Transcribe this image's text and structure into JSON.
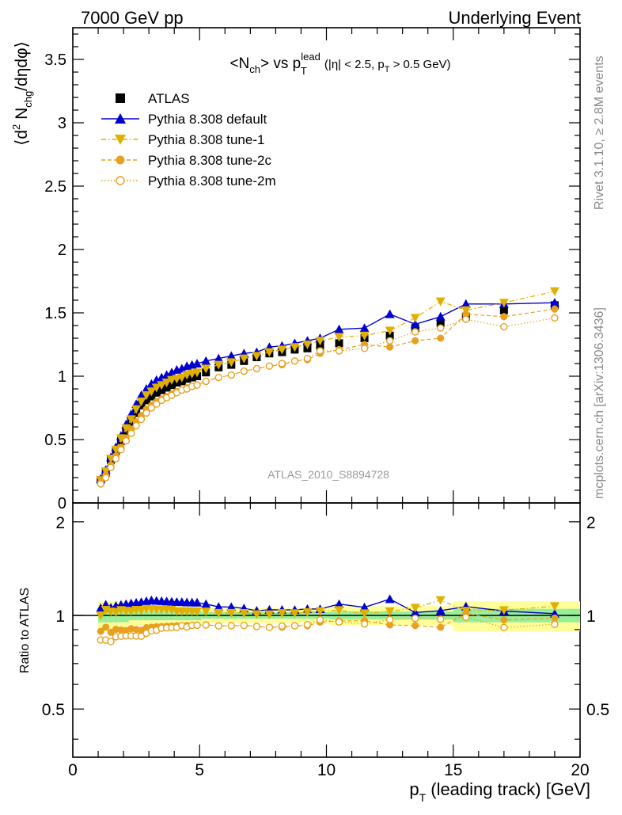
{
  "header": {
    "left": "7000 GeV pp",
    "right": "Underlying Event"
  },
  "side_labels": {
    "rivet": "Rivet 3.1.10, ≥ 2.8M events",
    "mcplots": "mcplots.cern.ch [arXiv:1306.3436]"
  },
  "chart_data": [
    {
      "type": "scatter",
      "title": "<N_ch> vs p_T^lead (|η| < 2.5, p_T > 0.5 GeV)",
      "ylabel": "⟨d² N_chg/dηdφ⟩",
      "ylim": [
        0,
        3.75
      ],
      "xlim": [
        0,
        20
      ],
      "yticks": [
        0,
        0.5,
        1,
        1.5,
        2,
        2.5,
        3,
        3.5
      ],
      "annotation": "ATLAS_2010_S8894728",
      "legend_position": "top-left",
      "x": [
        1.1,
        1.3,
        1.5,
        1.7,
        1.9,
        2.1,
        2.3,
        2.5,
        2.7,
        2.9,
        3.1,
        3.3,
        3.5,
        3.7,
        3.9,
        4.1,
        4.3,
        4.5,
        4.7,
        4.9,
        5.25,
        5.75,
        6.25,
        6.75,
        7.25,
        7.75,
        8.25,
        8.75,
        9.25,
        9.75,
        10.5,
        11.5,
        12.5,
        13.5,
        14.5,
        15.5,
        17.0,
        19.0
      ],
      "series": [
        {
          "name": "ATLAS",
          "marker": "square-filled",
          "color": "#000000",
          "values": [
            0.18,
            0.24,
            0.34,
            0.41,
            0.49,
            0.57,
            0.64,
            0.71,
            0.77,
            0.81,
            0.84,
            0.87,
            0.89,
            0.91,
            0.93,
            0.95,
            0.96,
            0.98,
            0.99,
            1.0,
            1.03,
            1.07,
            1.09,
            1.12,
            1.15,
            1.18,
            1.19,
            1.21,
            1.22,
            1.24,
            1.26,
            1.3,
            1.32,
            1.38,
            1.42,
            1.47,
            1.52,
            1.56
          ]
        },
        {
          "name": "Pythia 8.308 default",
          "marker": "triangle-up-filled",
          "color": "#0000d0",
          "line": "solid",
          "values": [
            0.19,
            0.26,
            0.36,
            0.44,
            0.53,
            0.62,
            0.7,
            0.78,
            0.85,
            0.9,
            0.94,
            0.97,
            0.99,
            1.01,
            1.03,
            1.05,
            1.06,
            1.08,
            1.09,
            1.1,
            1.12,
            1.14,
            1.16,
            1.18,
            1.19,
            1.23,
            1.24,
            1.26,
            1.28,
            1.3,
            1.37,
            1.38,
            1.49,
            1.41,
            1.47,
            1.57,
            1.57,
            1.58
          ]
        },
        {
          "name": "Pythia 8.308 tune-1",
          "marker": "triangle-down-filled",
          "color": "#e0b000",
          "line": "dash-dot",
          "values": [
            0.18,
            0.25,
            0.35,
            0.42,
            0.51,
            0.59,
            0.66,
            0.74,
            0.8,
            0.85,
            0.88,
            0.91,
            0.93,
            0.95,
            0.97,
            0.98,
            0.99,
            1.01,
            1.02,
            1.03,
            1.06,
            1.09,
            1.11,
            1.14,
            1.16,
            1.19,
            1.21,
            1.23,
            1.25,
            1.28,
            1.31,
            1.32,
            1.36,
            1.46,
            1.59,
            1.52,
            1.58,
            1.67
          ]
        },
        {
          "name": "Pythia 8.308 tune-2c",
          "marker": "circle-filled",
          "color": "#e8a020",
          "line": "dashed",
          "values": [
            0.16,
            0.22,
            0.3,
            0.37,
            0.44,
            0.51,
            0.58,
            0.64,
            0.69,
            0.74,
            0.77,
            0.8,
            0.82,
            0.84,
            0.86,
            0.88,
            0.89,
            0.91,
            0.92,
            0.93,
            0.96,
            0.99,
            1.01,
            1.04,
            1.06,
            1.08,
            1.09,
            1.12,
            1.13,
            1.18,
            1.21,
            1.25,
            1.23,
            1.28,
            1.3,
            1.49,
            1.47,
            1.53
          ]
        },
        {
          "name": "Pythia 8.308 tune-2m",
          "marker": "circle-open",
          "color": "#e8a020",
          "line": "dotted",
          "values": [
            0.15,
            0.2,
            0.28,
            0.35,
            0.42,
            0.49,
            0.55,
            0.61,
            0.66,
            0.71,
            0.75,
            0.78,
            0.81,
            0.83,
            0.85,
            0.87,
            0.89,
            0.9,
            0.92,
            0.93,
            0.96,
            0.99,
            1.01,
            1.04,
            1.06,
            1.08,
            1.1,
            1.12,
            1.14,
            1.2,
            1.2,
            1.22,
            1.28,
            1.35,
            1.38,
            1.45,
            1.39,
            1.46
          ]
        }
      ]
    },
    {
      "type": "scatter",
      "ylabel": "Ratio to ATLAS",
      "xlabel": "p_T (leading track) [GeV]",
      "xlim": [
        0,
        20
      ],
      "ylim": [
        0.35,
        2.3
      ],
      "yticks": [
        0.5,
        1,
        2
      ],
      "xticks": [
        0,
        5,
        10,
        15,
        20
      ],
      "reference_line": 1
    }
  ]
}
